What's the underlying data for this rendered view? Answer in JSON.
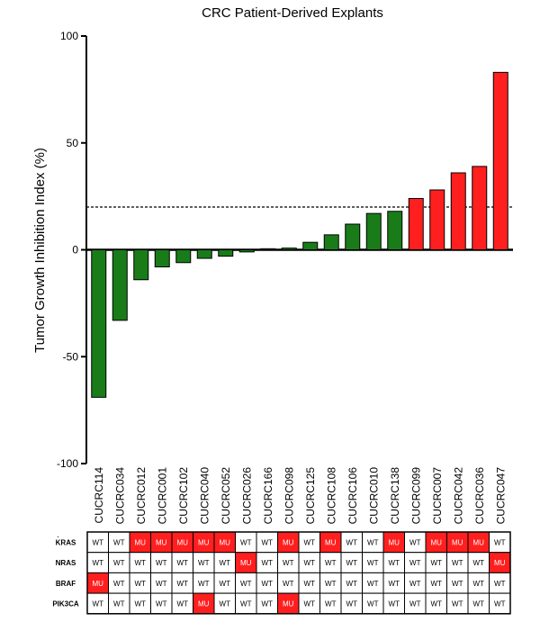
{
  "chart_data": {
    "type": "bar",
    "title": "CRC Patient-Derived Explants",
    "ylabel": "Tumor Growth Inhibition Index (%)",
    "xlabel": "",
    "ylim": [
      -100,
      100
    ],
    "yticks": [
      100,
      50,
      0,
      -50,
      -100
    ],
    "threshold": 20,
    "categories": [
      "CUCRC114",
      "CUCRC034",
      "CUCRC012",
      "CUCRC001",
      "CUCRC102",
      "CUCRC040",
      "CUCRC052",
      "CUCRC026",
      "CUCRC166",
      "CUCRC098",
      "CUCRC125",
      "CUCRC108",
      "CUCRC106",
      "CUCRC010",
      "CUCRC138",
      "CUCRC099",
      "CUCRC007",
      "CUCRC042",
      "CUCRC036",
      "CUCRC047"
    ],
    "values": [
      -69,
      -33,
      -14,
      -8,
      -6,
      -4,
      -3,
      -1,
      0.5,
      0.8,
      3.5,
      7,
      12,
      17,
      18,
      24,
      28,
      36,
      39,
      83
    ],
    "bar_colors": [
      "#197c19",
      "#197c19",
      "#197c19",
      "#197c19",
      "#197c19",
      "#197c19",
      "#197c19",
      "#197c19",
      "#197c19",
      "#197c19",
      "#197c19",
      "#197c19",
      "#197c19",
      "#197c19",
      "#197c19",
      "#ff1f1f",
      "#ff1f1f",
      "#ff1f1f",
      "#ff1f1f",
      "#ff1f1f"
    ],
    "grid": false,
    "legend": "none"
  },
  "mutation_table": {
    "corner_mark": ".",
    "genes": [
      "KRAS",
      "NRAS",
      "BRAF",
      "PIK3CA"
    ],
    "rows": [
      [
        "WT",
        "WT",
        "MU",
        "MU",
        "MU",
        "MU",
        "MU",
        "WT",
        "WT",
        "MU",
        "WT",
        "MU",
        "WT",
        "WT",
        "MU",
        "WT",
        "MU",
        "MU",
        "MU",
        "WT"
      ],
      [
        "WT",
        "WT",
        "WT",
        "WT",
        "WT",
        "WT",
        "WT",
        "MU",
        "WT",
        "WT",
        "WT",
        "WT",
        "WT",
        "WT",
        "WT",
        "WT",
        "WT",
        "WT",
        "WT",
        "MU"
      ],
      [
        "MU",
        "WT",
        "WT",
        "WT",
        "WT",
        "WT",
        "WT",
        "WT",
        "WT",
        "WT",
        "WT",
        "WT",
        "WT",
        "WT",
        "WT",
        "WT",
        "WT",
        "WT",
        "WT",
        "WT"
      ],
      [
        "WT",
        "WT",
        "WT",
        "WT",
        "WT",
        "MU",
        "WT",
        "WT",
        "WT",
        "MU",
        "WT",
        "WT",
        "WT",
        "WT",
        "WT",
        "WT",
        "WT",
        "WT",
        "WT",
        "WT"
      ]
    ],
    "mutant_color": "#ff1f1f",
    "wildtype_color": "#ffffff"
  }
}
